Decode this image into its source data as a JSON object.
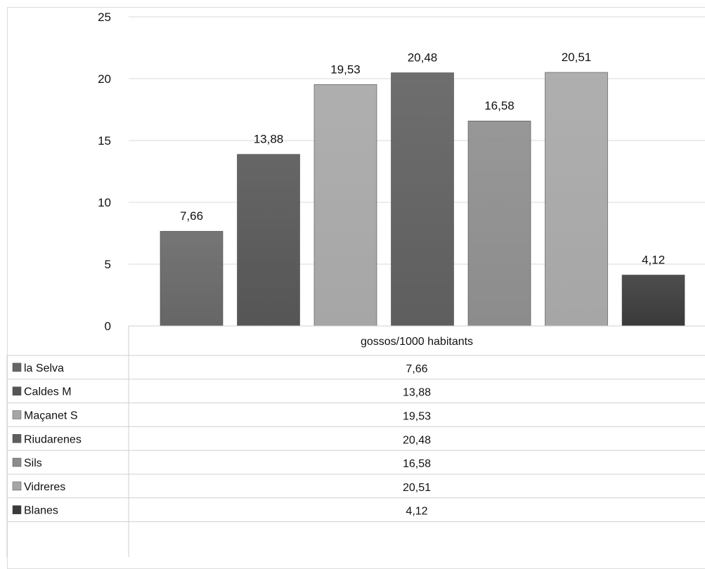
{
  "chart_data": {
    "type": "bar",
    "categories": [
      "gossos/1000 habitants"
    ],
    "series": [
      {
        "name": "la Selva",
        "values": [
          7.66
        ],
        "label": "7,66",
        "color": "#666666"
      },
      {
        "name": "Caldes M",
        "values": [
          13.88
        ],
        "label": "13,88",
        "color": "#555555"
      },
      {
        "name": "Maçanet S",
        "values": [
          19.53
        ],
        "label": "19,53",
        "color": "#a6a6a6"
      },
      {
        "name": "Riudarenes",
        "values": [
          20.48
        ],
        "label": "20,48",
        "color": "#5e5e5e"
      },
      {
        "name": "Sils",
        "values": [
          16.58
        ],
        "label": "16,58",
        "color": "#8c8c8c"
      },
      {
        "name": "Vidreres",
        "values": [
          20.51
        ],
        "label": "20,51",
        "color": "#a6a6a6"
      },
      {
        "name": "Blanes",
        "values": [
          4.12
        ],
        "label": "4,12",
        "color": "#3a3a3a"
      }
    ],
    "yticks": [
      "0",
      "5",
      "10",
      "15",
      "20",
      "25"
    ],
    "ylim": [
      0,
      25
    ],
    "grid": true,
    "legend": "data-table"
  }
}
